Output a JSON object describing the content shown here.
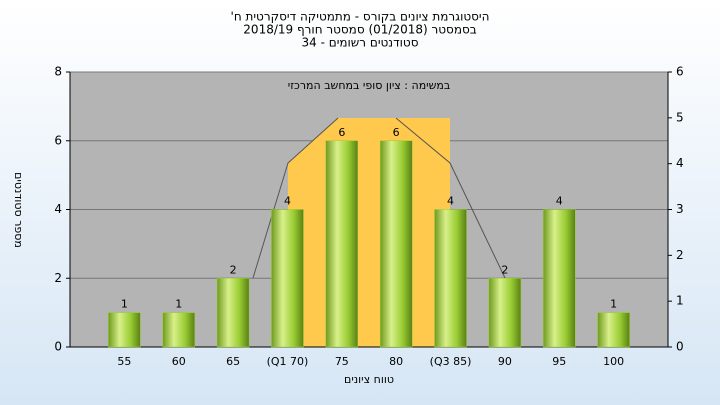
{
  "chart_data": {
    "type": "bar",
    "title": "היסטוגרמת ציונים בקורס - מתמטיקה דיסקרטית ח'",
    "subtitle": "בסמסטר (01/2018) סמסטר חורף 2018/19",
    "subtitle2": "סטודנטים רשומים - 34",
    "annotation": "במשימה : ציון סופי במחשב המרכזי",
    "x_label": "טווח ציונים",
    "y_label": "מספר סטודנטים",
    "categories": [
      "55",
      "60",
      "65",
      "(Q1 70)",
      "75",
      "80",
      "(Q3 85)",
      "90",
      "95",
      "100"
    ],
    "values": [
      1,
      1,
      2,
      4,
      6,
      6,
      4,
      2,
      4,
      1
    ],
    "color": "#99cc33",
    "ylim": [
      0,
      8
    ],
    "yticks": [
      0,
      2,
      4,
      6,
      8
    ],
    "y2lim": [
      0,
      6
    ],
    "y2ticks": [
      0,
      1,
      2,
      3,
      4,
      5,
      6
    ],
    "grid": true
  }
}
